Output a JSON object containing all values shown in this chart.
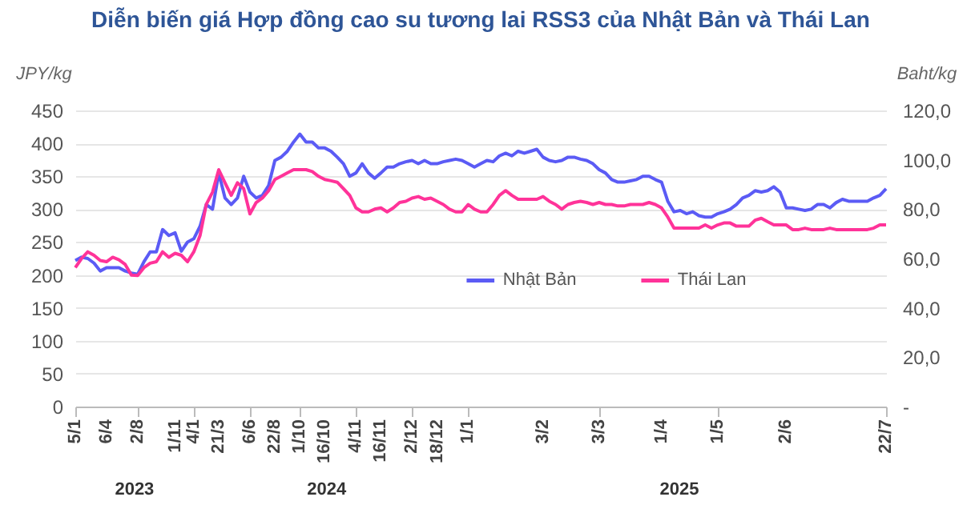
{
  "chart_data": {
    "type": "line",
    "title": "Diễn biến giá Hợp đồng cao su tương lai RSS3 của Nhật Bản và Thái Lan",
    "ylabel": "JPY/kg",
    "y2label": "Baht/kg",
    "categories": [
      "5/1",
      null,
      null,
      null,
      null,
      "6/4",
      null,
      null,
      null,
      null,
      "2/8",
      null,
      null,
      null,
      null,
      null,
      "1/11",
      null,
      null,
      "4/1",
      null,
      null,
      null,
      "21/3",
      null,
      null,
      null,
      null,
      "6/6",
      null,
      null,
      null,
      "22/8",
      null,
      null,
      null,
      "1/10",
      null,
      null,
      null,
      "16/10",
      null,
      null,
      null,
      null,
      "4/11",
      null,
      null,
      null,
      "16/11",
      null,
      null,
      null,
      null,
      "2/12",
      null,
      null,
      null,
      "18/12",
      null,
      null,
      null,
      null,
      "1/1",
      null,
      null,
      null,
      null,
      null,
      null,
      null,
      null,
      null,
      null,
      null,
      "3/2",
      null,
      null,
      null,
      null,
      null,
      null,
      null,
      null,
      "3/3",
      null,
      null,
      null,
      null,
      null,
      null,
      null,
      null,
      null,
      "1/4",
      null,
      null,
      null,
      null,
      null,
      null,
      null,
      null,
      "1/5",
      null,
      null,
      null,
      null,
      null,
      null,
      null,
      null,
      null,
      null,
      "2/6",
      null,
      null,
      null,
      null,
      null,
      null,
      null,
      null,
      null,
      null,
      null,
      null,
      null,
      null,
      null,
      "22/7"
    ],
    "series": [
      {
        "name": "Nhật Bản",
        "color": "#5b5bf5",
        "values": [
          222,
          227,
          225,
          218,
          206,
          211,
          211,
          211,
          206,
          203,
          201,
          220,
          235,
          235,
          269,
          260,
          264,
          236,
          250,
          255,
          274,
          307,
          300,
          355,
          317,
          307,
          317,
          350,
          326,
          317,
          321,
          336,
          374,
          379,
          388,
          402,
          414,
          402,
          402,
          393,
          393,
          388,
          379,
          369,
          350,
          355,
          369,
          355,
          347,
          355,
          364,
          364,
          369,
          372,
          374,
          369,
          374,
          369,
          369,
          372,
          374,
          376,
          374,
          369,
          364,
          369,
          374,
          372,
          381,
          385,
          381,
          388,
          385,
          388,
          391,
          379,
          374,
          372,
          374,
          379,
          379,
          376,
          374,
          369,
          360,
          355,
          345,
          341,
          341,
          343,
          345,
          350,
          350,
          345,
          341,
          312,
          296,
          298,
          293,
          296,
          290,
          288,
          288,
          293,
          296,
          300,
          307,
          317,
          321,
          328,
          326,
          328,
          334,
          326,
          302,
          302,
          300,
          298,
          300,
          307,
          307,
          302,
          310,
          315,
          312,
          312,
          312,
          312,
          317,
          321,
          331
        ]
      },
      {
        "name": "Thái Lan",
        "color": "#ff3399",
        "axis": "y2",
        "values": [
          56.3,
          60.0,
          62.7,
          61.3,
          59.2,
          58.7,
          60.5,
          59.5,
          57.6,
          53.3,
          53.1,
          56.3,
          58.1,
          58.7,
          62.7,
          60.5,
          62.1,
          61.3,
          58.7,
          62.7,
          69.3,
          81.9,
          86.9,
          96.0,
          90.7,
          85.6,
          90.7,
          88.3,
          78.1,
          82.7,
          84.5,
          87.5,
          92.0,
          93.3,
          94.7,
          96.0,
          96.0,
          96.0,
          95.2,
          93.3,
          92.0,
          91.5,
          90.9,
          88.3,
          85.6,
          80.5,
          78.9,
          78.9,
          80.0,
          80.5,
          78.9,
          80.5,
          82.7,
          83.2,
          84.5,
          85.1,
          84.0,
          84.5,
          83.2,
          81.9,
          80.0,
          78.9,
          78.9,
          81.9,
          80.0,
          78.9,
          78.9,
          81.9,
          85.6,
          87.5,
          85.6,
          84.0,
          84.0,
          84.0,
          84.0,
          85.1,
          83.2,
          81.9,
          80.0,
          81.9,
          82.7,
          83.2,
          82.7,
          81.9,
          82.7,
          81.9,
          81.9,
          81.3,
          81.3,
          81.9,
          81.9,
          81.9,
          82.7,
          81.9,
          80.5,
          76.8,
          72.3,
          72.3,
          72.3,
          72.3,
          72.3,
          73.6,
          72.3,
          73.6,
          74.4,
          74.4,
          73.1,
          73.1,
          73.1,
          75.5,
          76.3,
          74.9,
          73.6,
          73.6,
          73.6,
          71.7,
          71.7,
          72.3,
          71.7,
          71.7,
          71.7,
          72.3,
          71.7,
          71.7,
          71.7,
          71.7,
          71.7,
          71.7,
          72.3,
          73.6,
          73.6
        ]
      }
    ],
    "ylim": [
      0,
      450
    ],
    "yticks": [
      0,
      50,
      100,
      150,
      200,
      250,
      300,
      350,
      400,
      450
    ],
    "y2lim": [
      0,
      120
    ],
    "y2ticks": [
      {
        "value": 0,
        "label": "-"
      },
      {
        "value": 20,
        "label": "20,0"
      },
      {
        "value": 40,
        "label": "40,0"
      },
      {
        "value": 60,
        "label": "60,0"
      },
      {
        "value": 80,
        "label": "80,0"
      },
      {
        "value": 100,
        "label": "100,0"
      },
      {
        "value": 120,
        "label": "120,0"
      }
    ],
    "grid": "y",
    "legend": "center",
    "annotations": [
      "2023",
      "2024",
      "2025"
    ]
  }
}
